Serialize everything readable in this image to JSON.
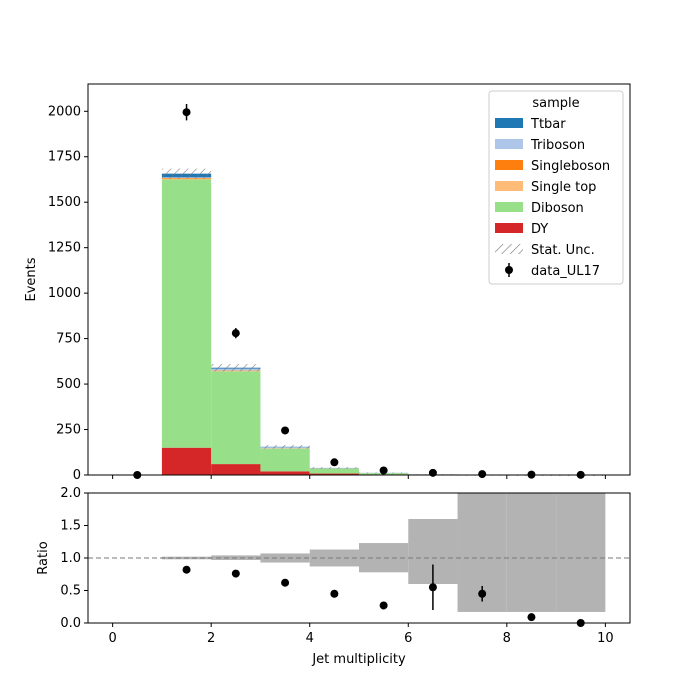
{
  "chart_data": {
    "type": "bar",
    "stacked": true,
    "bin_edges": [
      0,
      1,
      2,
      3,
      4,
      5,
      6,
      7,
      8,
      9,
      10
    ],
    "xlabel": "Jet multiplicity",
    "ylabel": "Events",
    "ratio_ylabel": "Ratio",
    "xlim": [
      -0.5,
      10.5
    ],
    "ylim": [
      0,
      2150
    ],
    "ratio_ylim": [
      0,
      2.0
    ],
    "x_ticks": [
      "0",
      "2",
      "4",
      "6",
      "8",
      "10"
    ],
    "y_ticks": [
      "0",
      "250",
      "500",
      "750",
      "1000",
      "1250",
      "1500",
      "1750",
      "2000"
    ],
    "ratio_y_ticks": [
      "0.0",
      "0.5",
      "1.0",
      "1.5",
      "2.0"
    ],
    "legend_title": "sample",
    "legend_position": "top-right",
    "stat_unc_label": "Stat. Unc.",
    "series": [
      {
        "name": "DY",
        "color": "#d62728",
        "values": [
          0,
          150,
          60,
          20,
          8,
          3,
          1,
          0.5,
          0.2,
          0.1
        ]
      },
      {
        "name": "Diboson",
        "color": "#98df8a",
        "values": [
          0,
          1475,
          510,
          125,
          27,
          7,
          1.5,
          0.3,
          0.1,
          0
        ]
      },
      {
        "name": "Single top",
        "color": "#ffbb78",
        "values": [
          0,
          5,
          3,
          1,
          0.5,
          0.2,
          0.1,
          0,
          0,
          0
        ]
      },
      {
        "name": "Singleboson",
        "color": "#ff7f0e",
        "values": [
          0,
          3,
          2,
          1,
          0.3,
          0.1,
          0,
          0,
          0,
          0
        ]
      },
      {
        "name": "Triboson",
        "color": "#aec7e8",
        "values": [
          0,
          4,
          10,
          6,
          2,
          0.8,
          0.4,
          0.2,
          0.1,
          0.1
        ]
      },
      {
        "name": "Ttbar",
        "color": "#1f77b4",
        "values": [
          0,
          20,
          5,
          2,
          1,
          0.5,
          0.2,
          0.1,
          0,
          0
        ]
      }
    ],
    "stat_unc": [
      0,
      28,
      20,
      10,
      4,
      2,
      1,
      0.5,
      0.3,
      0.2
    ],
    "data": {
      "name": "data_UL17",
      "x": [
        0.5,
        1.5,
        2.5,
        3.5,
        4.5,
        5.5,
        6.5,
        7.5,
        8.5,
        9.5
      ],
      "y": [
        0,
        1995,
        780,
        245,
        70,
        25,
        12,
        5,
        2,
        1
      ],
      "err": [
        0,
        45,
        28,
        16,
        8,
        5,
        3.5,
        2.2,
        1.4,
        1
      ]
    },
    "ratio": {
      "reference_line": 1.0,
      "unc_low": [
        null,
        0.98,
        0.97,
        0.93,
        0.87,
        0.78,
        0.6,
        0.17,
        0.17,
        0.17
      ],
      "unc_high": [
        null,
        1.02,
        1.04,
        1.07,
        1.13,
        1.23,
        1.6,
        2.0,
        2.0,
        2.0
      ],
      "x": [
        1.5,
        2.5,
        3.5,
        4.5,
        5.5,
        6.5,
        7.5,
        8.5,
        9.5
      ],
      "y": [
        0.82,
        0.76,
        0.62,
        0.45,
        0.27,
        0.55,
        0.45,
        0.09,
        0.0
      ],
      "err": [
        0.02,
        0.03,
        0.04,
        0.05,
        0.04,
        0.35,
        0.12,
        0.05,
        0.02
      ]
    }
  }
}
